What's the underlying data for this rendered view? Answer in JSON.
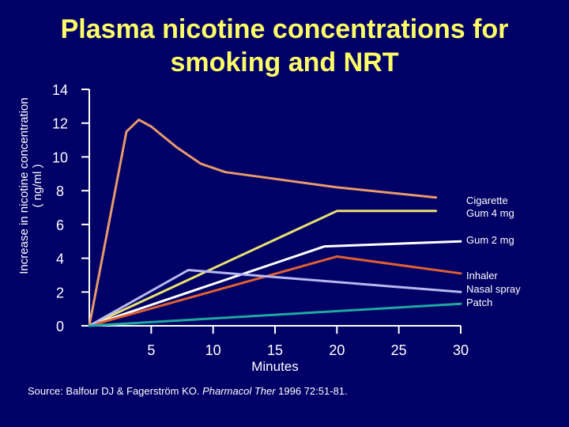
{
  "title_line1": "Plasma nicotine concentrations for",
  "title_line2": "smoking and NRT",
  "ylabel_line1": "Increase in nicotine concentration",
  "ylabel_line2": "( ng/ml )",
  "source": {
    "prefix": "Source: Balfour DJ & Fagerström KO.  ",
    "journal": "Pharmacol Ther",
    "suffix": " 1996 72:51-81."
  },
  "chart_data": {
    "type": "line",
    "title": "Plasma nicotine concentrations for smoking and NRT",
    "xlabel": "Minutes",
    "ylabel": "Increase in nicotine concentration ( ng/ml )",
    "xlim": [
      0,
      30
    ],
    "ylim": [
      0,
      14
    ],
    "x_ticks": [
      5,
      10,
      15,
      20,
      25,
      30
    ],
    "y_ticks": [
      0,
      2,
      4,
      6,
      8,
      10,
      12,
      14
    ],
    "grid": false,
    "legend": "inline labels at right end of lines",
    "colors": {
      "background": "#000066",
      "title": "#ffff66",
      "axis": "#ffffff"
    },
    "series": [
      {
        "name": "Cigarette",
        "color": "#e89a6a",
        "points": [
          [
            0,
            0
          ],
          [
            3,
            11.5
          ],
          [
            4,
            12.2
          ],
          [
            5,
            11.8
          ],
          [
            7,
            10.6
          ],
          [
            9,
            9.6
          ],
          [
            11,
            9.1
          ],
          [
            15,
            8.7
          ],
          [
            20,
            8.2
          ],
          [
            28,
            7.6
          ]
        ]
      },
      {
        "name": "Gum 4 mg",
        "color": "#e8e070",
        "points": [
          [
            0,
            0
          ],
          [
            20,
            6.8
          ],
          [
            28,
            6.8
          ]
        ]
      },
      {
        "name": "Gum 2 mg",
        "color": "#ffffff",
        "points": [
          [
            0,
            0
          ],
          [
            19,
            4.7
          ],
          [
            30,
            5.0
          ]
        ]
      },
      {
        "name": "Inhaler",
        "color": "#e06030",
        "points": [
          [
            0,
            0
          ],
          [
            20,
            4.1
          ],
          [
            30,
            3.1
          ]
        ]
      },
      {
        "name": "Nasal spray",
        "color": "#b8b8f0",
        "points": [
          [
            0,
            0
          ],
          [
            8,
            3.3
          ],
          [
            30,
            2.0
          ]
        ]
      },
      {
        "name": "Patch",
        "color": "#20a8a0",
        "points": [
          [
            0,
            0
          ],
          [
            30,
            1.3
          ]
        ]
      }
    ],
    "labels": [
      {
        "text": "Cigarette",
        "anchor_y": 7.6
      },
      {
        "text": "Gum 4 mg",
        "anchor_y": 6.8
      },
      {
        "text": "Gum 2 mg",
        "anchor_y": 5.0
      },
      {
        "text": "Inhaler",
        "anchor_y": 3.1
      },
      {
        "text": "Nasal spray",
        "anchor_y": 2.0
      },
      {
        "text": "Patch",
        "anchor_y": 1.3
      }
    ]
  }
}
